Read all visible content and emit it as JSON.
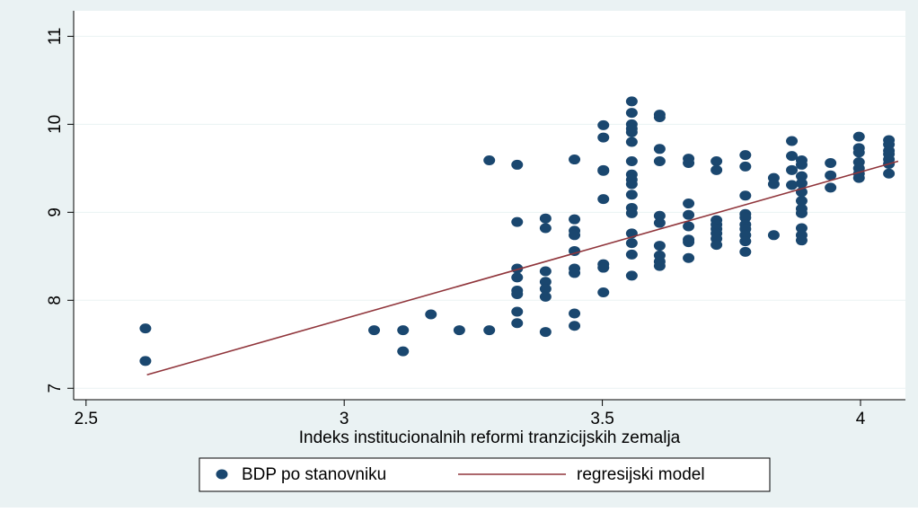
{
  "chart_data": {
    "type": "scatter",
    "xlabel": "Indeks institucionalnih reformi tranzicijskih zemalja",
    "xlim": [
      2.476,
      4.087
    ],
    "xticks": [
      2.5,
      3,
      3.5,
      4
    ],
    "ylim": [
      6.87,
      11.29
    ],
    "yticks": [
      7,
      8,
      9,
      10,
      11
    ],
    "grid": true,
    "series": [
      {
        "name": "BDP po stanovniku",
        "color": "#1a476f",
        "style": "markers",
        "x": [
          2.615,
          2.615,
          3.058,
          3.114,
          3.114,
          3.168,
          3.223,
          3.281,
          3.281,
          3.335,
          3.335,
          3.335,
          3.335,
          3.335,
          3.335,
          3.335,
          3.335,
          3.39,
          3.39,
          3.39,
          3.39,
          3.39,
          3.39,
          3.39,
          3.446,
          3.446,
          3.446,
          3.446,
          3.446,
          3.446,
          3.446,
          3.446,
          3.446,
          3.502,
          3.502,
          3.502,
          3.502,
          3.502,
          3.502,
          3.502,
          3.502,
          3.557,
          3.557,
          3.557,
          3.557,
          3.557,
          3.557,
          3.557,
          3.557,
          3.557,
          3.557,
          3.557,
          3.557,
          3.557,
          3.557,
          3.557,
          3.557,
          3.557,
          3.611,
          3.611,
          3.611,
          3.611,
          3.611,
          3.611,
          3.611,
          3.611,
          3.611,
          3.611,
          3.667,
          3.667,
          3.667,
          3.667,
          3.667,
          3.667,
          3.667,
          3.667,
          3.721,
          3.721,
          3.721,
          3.721,
          3.721,
          3.721,
          3.721,
          3.721,
          3.777,
          3.777,
          3.777,
          3.777,
          3.777,
          3.777,
          3.777,
          3.777,
          3.777,
          3.777,
          3.832,
          3.832,
          3.832,
          3.867,
          3.867,
          3.867,
          3.867,
          3.886,
          3.886,
          3.886,
          3.886,
          3.886,
          3.886,
          3.886,
          3.886,
          3.886,
          3.886,
          3.886,
          3.942,
          3.942,
          3.942,
          3.997,
          3.997,
          3.997,
          3.997,
          3.997,
          3.997,
          3.997,
          4.055,
          4.055,
          4.055,
          4.055,
          4.055,
          4.055,
          4.055
        ],
        "values": [
          7.68,
          7.31,
          7.66,
          7.66,
          7.42,
          7.84,
          7.66,
          7.66,
          9.59,
          9.54,
          8.89,
          8.36,
          8.26,
          8.11,
          8.07,
          7.87,
          7.74,
          8.93,
          8.82,
          8.33,
          8.21,
          8.13,
          8.04,
          7.64,
          9.6,
          8.92,
          8.79,
          8.74,
          8.56,
          8.36,
          8.31,
          7.85,
          7.71,
          9.99,
          9.85,
          9.48,
          9.47,
          9.15,
          8.41,
          8.37,
          8.09,
          10.26,
          10.13,
          10.0,
          9.95,
          9.91,
          9.8,
          9.58,
          9.43,
          9.37,
          9.32,
          9.2,
          9.05,
          8.99,
          8.76,
          8.65,
          8.52,
          8.28,
          10.11,
          10.08,
          9.72,
          9.58,
          8.96,
          8.88,
          8.62,
          8.51,
          8.44,
          8.39,
          9.61,
          9.56,
          9.1,
          8.97,
          8.84,
          8.69,
          8.66,
          8.48,
          9.58,
          9.48,
          8.91,
          8.86,
          8.81,
          8.76,
          8.7,
          8.63,
          9.65,
          9.52,
          9.19,
          8.98,
          8.94,
          8.86,
          8.81,
          8.74,
          8.67,
          8.55,
          9.39,
          9.32,
          8.74,
          9.81,
          9.64,
          9.48,
          9.31,
          9.59,
          9.54,
          9.41,
          9.33,
          9.23,
          9.13,
          9.04,
          8.99,
          8.82,
          8.74,
          8.68,
          9.56,
          9.42,
          9.28,
          9.86,
          9.73,
          9.68,
          9.57,
          9.5,
          9.44,
          9.39,
          9.82,
          9.77,
          9.7,
          9.66,
          9.6,
          9.55,
          9.44
        ]
      },
      {
        "name": "regresijski model",
        "color": "#90353b",
        "style": "line",
        "x": [
          2.618,
          4.073
        ],
        "values": [
          7.153,
          9.58
        ]
      }
    ]
  }
}
